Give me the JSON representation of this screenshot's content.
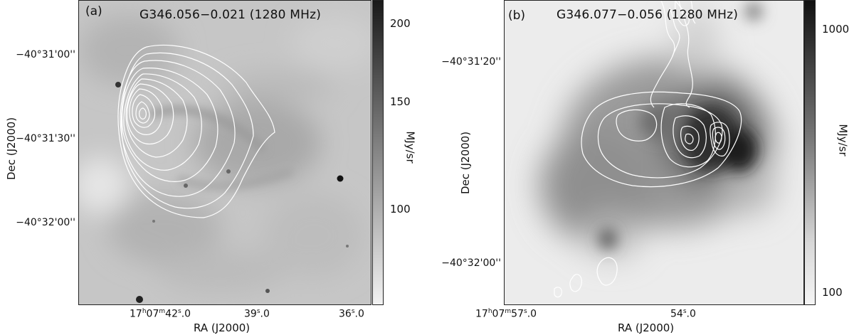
{
  "figure": {
    "panels": [
      {
        "label": "(a)",
        "title": "G346.056−0.021 (1280 MHz)",
        "x_axis_label": "RA (J2000)",
        "y_axis_label": "Dec (J2000)",
        "ra_ticks": [
          {
            "h": "17",
            "m": "07",
            "s": "42",
            "frac": "0"
          },
          {
            "s": "39",
            "frac": "0"
          },
          {
            "s": "36",
            "frac": "0"
          }
        ],
        "dec_ticks": [
          "−40°31'00''",
          "−40°31'30''",
          "−40°32'00''"
        ],
        "colorbar": {
          "unit": "MJy/sr",
          "ticks": [
            "200",
            "150",
            "100"
          ],
          "scale_top": 215,
          "scale_bottom": 70,
          "gradient_top": "#1a1a1a",
          "gradient_bottom": "#f2f2f2"
        }
      },
      {
        "label": "(b)",
        "title": "G346.077−0.056 (1280 MHz)",
        "x_axis_label": "RA (J2000)",
        "y_axis_label": "Dec (J2000)",
        "ra_ticks": [
          {
            "h": "17",
            "m": "07",
            "s": "57",
            "frac": "0"
          },
          {
            "s": "54",
            "frac": "0"
          }
        ],
        "dec_ticks": [
          "−40°31'20''",
          "−40°32'00''"
        ],
        "colorbar": {
          "unit": "MJy/sr",
          "ticks": [
            "1000",
            "100"
          ],
          "scale": "log",
          "gradient_top": "#111111",
          "gradient_bottom": "#f5f5f5"
        }
      }
    ],
    "contour_color": "#ffffff"
  }
}
